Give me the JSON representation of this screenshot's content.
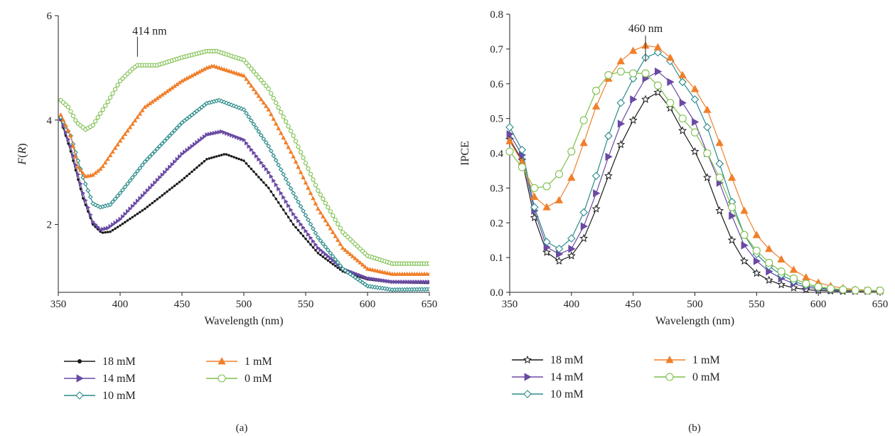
{
  "chart_data": [
    {
      "type": "line",
      "panel_label": "(a)",
      "xlabel": "Wavelength (nm)",
      "ylabel_main": "F",
      "ylabel_paren_open": "(",
      "ylabel_var": "R",
      "ylabel_paren_close": ")",
      "xlim": [
        350,
        650
      ],
      "ylim": [
        0.7,
        6
      ],
      "xticks": [
        "350",
        "400",
        "450",
        "500",
        "550",
        "600",
        "650"
      ],
      "yticks": [
        "2",
        "4",
        "6"
      ],
      "annotation": {
        "text": "414 nm",
        "x": 414
      },
      "marker_spacing_nm": 2,
      "series": [
        {
          "name": "18 mM",
          "color": "#1a1a1a",
          "marker": "dot",
          "x": [
            352,
            360,
            370,
            378,
            385,
            392,
            400,
            420,
            450,
            470,
            485,
            500,
            520,
            540,
            560,
            580,
            600,
            620,
            650
          ],
          "y": [
            4.0,
            3.4,
            2.5,
            2.0,
            1.84,
            1.86,
            1.98,
            2.3,
            2.85,
            3.25,
            3.35,
            3.22,
            2.7,
            2.0,
            1.45,
            1.1,
            0.95,
            0.9,
            0.88
          ]
        },
        {
          "name": "14 mM",
          "color": "#6a4aa3",
          "marker": "triangle-right",
          "x": [
            352,
            360,
            370,
            378,
            384,
            390,
            400,
            420,
            450,
            470,
            482,
            500,
            520,
            540,
            560,
            580,
            600,
            620,
            650
          ],
          "y": [
            4.02,
            3.5,
            2.6,
            2.05,
            1.9,
            1.93,
            2.1,
            2.6,
            3.35,
            3.72,
            3.78,
            3.62,
            3.0,
            2.2,
            1.55,
            1.15,
            0.97,
            0.9,
            0.9
          ]
        },
        {
          "name": "10 mM",
          "color": "#2a8a8a",
          "marker": "diamond",
          "x": [
            352,
            360,
            370,
            378,
            384,
            392,
            400,
            420,
            450,
            470,
            480,
            500,
            520,
            540,
            560,
            580,
            600,
            620,
            650
          ],
          "y": [
            4.05,
            3.7,
            2.9,
            2.4,
            2.33,
            2.38,
            2.6,
            3.2,
            3.95,
            4.32,
            4.38,
            4.2,
            3.5,
            2.6,
            1.75,
            1.15,
            0.82,
            0.75,
            0.76
          ]
        },
        {
          "name": "1 mM",
          "color": "#f07f2a",
          "marker": "triangle-up",
          "x": [
            352,
            360,
            366,
            372,
            378,
            385,
            400,
            420,
            450,
            470,
            475,
            500,
            520,
            540,
            560,
            580,
            600,
            620,
            650
          ],
          "y": [
            4.1,
            3.7,
            3.1,
            2.92,
            2.95,
            3.08,
            3.6,
            4.25,
            4.75,
            5.0,
            5.04,
            4.85,
            4.2,
            3.3,
            2.3,
            1.55,
            1.15,
            1.05,
            1.05
          ]
        },
        {
          "name": "0 mM",
          "color": "#7dbf4c",
          "marker": "circle",
          "x": [
            352,
            358,
            365,
            372,
            378,
            390,
            400,
            410,
            414,
            420,
            430,
            450,
            470,
            478,
            500,
            520,
            540,
            560,
            580,
            600,
            620,
            650
          ],
          "y": [
            4.38,
            4.25,
            3.95,
            3.82,
            3.9,
            4.35,
            4.75,
            4.98,
            5.05,
            5.05,
            5.05,
            5.2,
            5.32,
            5.32,
            5.15,
            4.6,
            3.7,
            2.65,
            1.85,
            1.4,
            1.25,
            1.25
          ]
        }
      ],
      "legend": {
        "placement": "below",
        "columns": [
          [
            "18 mM",
            "14 mM",
            "10 mM"
          ],
          [
            "1 mM",
            "0 mM"
          ]
        ]
      }
    },
    {
      "type": "line",
      "panel_label": "(b)",
      "xlabel": "Wavelength (nm)",
      "ylabel": "IPCE",
      "xlim": [
        350,
        650
      ],
      "ylim": [
        0,
        0.8
      ],
      "xticks": [
        "350",
        "400",
        "450",
        "500",
        "550",
        "600",
        "650"
      ],
      "yticks": [
        "0.0",
        "0.1",
        "0.2",
        "0.3",
        "0.4",
        "0.5",
        "0.6",
        "0.7",
        "0.8"
      ],
      "annotation": {
        "text": "460 nm",
        "x": 460
      },
      "x": [
        350,
        360,
        370,
        380,
        390,
        400,
        410,
        420,
        430,
        440,
        450,
        460,
        470,
        480,
        490,
        500,
        510,
        520,
        530,
        540,
        550,
        560,
        570,
        580,
        590,
        600,
        610,
        620,
        630,
        640,
        650
      ],
      "series": [
        {
          "name": "18 mM",
          "color": "#1a1a1a",
          "marker": "star",
          "values": [
            0.44,
            0.38,
            0.215,
            0.115,
            0.09,
            0.105,
            0.155,
            0.24,
            0.335,
            0.425,
            0.495,
            0.555,
            0.575,
            0.53,
            0.465,
            0.405,
            0.33,
            0.235,
            0.15,
            0.09,
            0.055,
            0.035,
            0.022,
            0.013,
            0.008,
            0.005,
            0.004,
            0.003,
            0.003,
            0.003,
            0.003
          ]
        },
        {
          "name": "14 mM",
          "color": "#6a4aa3",
          "marker": "triangle-right",
          "values": [
            0.455,
            0.395,
            0.235,
            0.13,
            0.11,
            0.125,
            0.19,
            0.285,
            0.39,
            0.485,
            0.555,
            0.615,
            0.635,
            0.605,
            0.545,
            0.49,
            0.4,
            0.315,
            0.22,
            0.135,
            0.09,
            0.06,
            0.04,
            0.025,
            0.015,
            0.01,
            0.007,
            0.005,
            0.004,
            0.004,
            0.004
          ]
        },
        {
          "name": "10 mM",
          "color": "#2a8a8a",
          "marker": "diamond",
          "values": [
            0.475,
            0.41,
            0.245,
            0.145,
            0.125,
            0.155,
            0.23,
            0.335,
            0.45,
            0.545,
            0.615,
            0.675,
            0.69,
            0.665,
            0.605,
            0.555,
            0.475,
            0.37,
            0.26,
            0.165,
            0.11,
            0.075,
            0.05,
            0.032,
            0.02,
            0.013,
            0.009,
            0.007,
            0.006,
            0.005,
            0.005
          ]
        },
        {
          "name": "1 mM",
          "color": "#f07f2a",
          "marker": "triangle-up",
          "values": [
            0.435,
            0.375,
            0.275,
            0.245,
            0.265,
            0.33,
            0.43,
            0.535,
            0.615,
            0.665,
            0.695,
            0.71,
            0.705,
            0.675,
            0.625,
            0.585,
            0.525,
            0.43,
            0.33,
            0.235,
            0.165,
            0.125,
            0.095,
            0.065,
            0.043,
            0.028,
            0.018,
            0.012,
            0.008,
            0.006,
            0.005
          ]
        },
        {
          "name": "0 mM",
          "color": "#7dbf4c",
          "marker": "circle",
          "values": [
            0.405,
            0.36,
            0.3,
            0.305,
            0.34,
            0.405,
            0.495,
            0.58,
            0.625,
            0.635,
            0.63,
            0.63,
            0.595,
            0.545,
            0.5,
            0.46,
            0.4,
            0.33,
            0.245,
            0.165,
            0.12,
            0.085,
            0.06,
            0.04,
            0.025,
            0.016,
            0.011,
            0.008,
            0.006,
            0.005,
            0.005
          ]
        }
      ],
      "legend": {
        "placement": "below",
        "columns": [
          [
            "18 mM",
            "14 mM",
            "10 mM"
          ],
          [
            "1 mM",
            "0 mM"
          ]
        ]
      }
    }
  ]
}
